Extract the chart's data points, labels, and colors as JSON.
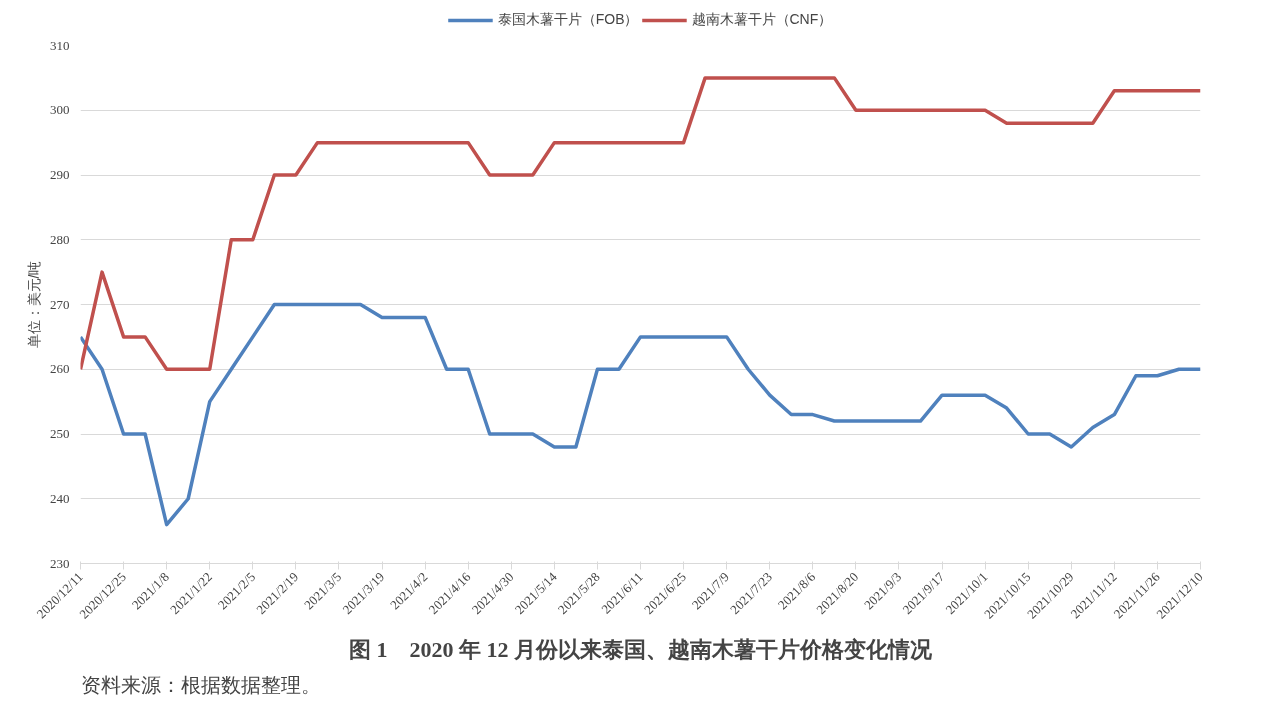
{
  "chart_data": {
    "type": "line",
    "title": "图 1　2020 年 12 月份以来泰国、越南木薯干片价格变化情况",
    "ylabel": "单位：美元/吨",
    "categories": [
      "2020/12/11",
      null,
      "2020/12/25",
      null,
      "2021/1/8",
      null,
      "2021/1/22",
      null,
      "2021/2/5",
      null,
      "2021/2/19",
      null,
      "2021/3/5",
      null,
      "2021/3/19",
      null,
      "2021/4/2",
      null,
      "2021/4/16",
      null,
      "2021/4/30",
      null,
      "2021/5/14",
      null,
      "2021/5/28",
      null,
      "2021/6/11",
      null,
      "2021/6/25",
      null,
      "2021/7/9",
      null,
      "2021/7/23",
      null,
      "2021/8/6",
      null,
      "2021/8/20",
      null,
      "2021/9/3",
      null,
      "2021/9/17",
      null,
      "2021/10/1",
      null,
      "2021/10/15",
      null,
      "2021/10/29",
      null,
      "2021/11/12",
      null,
      "2021/11/26",
      null,
      "2021/12/10"
    ],
    "series": [
      {
        "name": "泰国木薯干片（FOB）",
        "color": "#4f81bd",
        "values": [
          265,
          260,
          250,
          250,
          236,
          240,
          255,
          260,
          265,
          270,
          270,
          270,
          270,
          270,
          268,
          268,
          268,
          260,
          260,
          250,
          250,
          250,
          248,
          248,
          260,
          260,
          265,
          265,
          265,
          265,
          265,
          260,
          256,
          253,
          253,
          252,
          252,
          252,
          252,
          252,
          256,
          256,
          256,
          254,
          250,
          250,
          248,
          251,
          253,
          259,
          259,
          260,
          260
        ]
      },
      {
        "name": "越南木薯干片（CNF）",
        "color": "#c0504d",
        "values": [
          260,
          275,
          265,
          265,
          260,
          260,
          260,
          280,
          280,
          290,
          290,
          295,
          295,
          295,
          295,
          295,
          295,
          295,
          295,
          290,
          290,
          290,
          295,
          295,
          295,
          295,
          295,
          295,
          295,
          305,
          305,
          305,
          305,
          305,
          305,
          305,
          300,
          300,
          300,
          300,
          300,
          300,
          300,
          298,
          298,
          298,
          298,
          298,
          303,
          303,
          303,
          303,
          303
        ]
      }
    ],
    "ylim": [
      230,
      310
    ],
    "yticks": [
      230,
      240,
      250,
      260,
      270,
      280,
      290,
      300,
      310
    ],
    "grid": "y",
    "legend": "top",
    "line_style": "solid",
    "marker": "none",
    "annotations": [
      "资料来源：根据数据整理。"
    ]
  }
}
